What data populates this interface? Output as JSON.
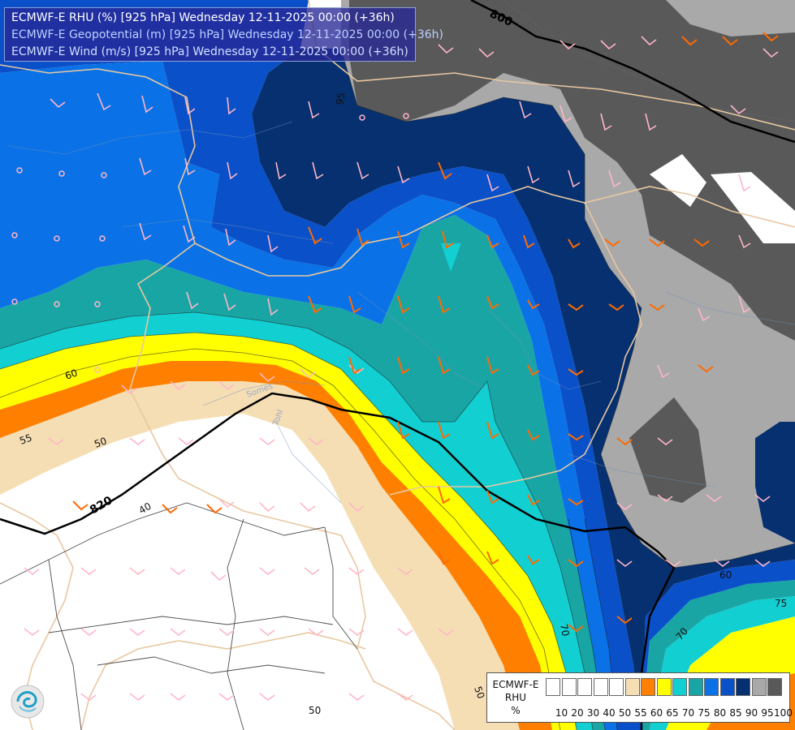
{
  "title": {
    "line1": "ECMWF-E RHU (%) [925 hPa] Wednesday 12-11-2025 00:00 (+36h)",
    "line2": "ECMWF-E Geopotential (m) [925 hPa] Wednesday 12-11-2025 00:00 (+36h)",
    "line3": "ECMWF-E Wind (m/s) [925 hPa] Wednesday 12-11-2025 00:00 (+36h)"
  },
  "geopotential_labels": [
    "800",
    "820"
  ],
  "rhu_contour_labels": [
    "95",
    "60",
    "55",
    "50",
    "40",
    "60",
    "75",
    "70",
    "70",
    "50",
    "50"
  ],
  "river_labels": [
    "Somes",
    "Tohl"
  ],
  "legend": {
    "name_line1": "ECMWF-E",
    "name_line2": "RHU",
    "unit": "%",
    "bins": [
      {
        "color": "#ffffff",
        "tick": "10"
      },
      {
        "color": "#ffffff",
        "tick": "20"
      },
      {
        "color": "#ffffff",
        "tick": "30"
      },
      {
        "color": "#ffffff",
        "tick": "40"
      },
      {
        "color": "#ffffff",
        "tick": "50"
      },
      {
        "color": "#f5deb3",
        "tick": "55"
      },
      {
        "color": "#ff7f00",
        "tick": "60"
      },
      {
        "color": "#ffff00",
        "tick": "65"
      },
      {
        "color": "#12cfd2",
        "tick": "70"
      },
      {
        "color": "#1aa5a5",
        "tick": "75"
      },
      {
        "color": "#0a72e6",
        "tick": "80"
      },
      {
        "color": "#0a50c8",
        "tick": "85"
      },
      {
        "color": "#063070",
        "tick": "90"
      },
      {
        "color": "#a9a9a9",
        "tick": "95"
      },
      {
        "color": "#595959",
        "tick": "100"
      }
    ]
  },
  "colors": {
    "rhu_100": "#595959",
    "rhu_95": "#a9a9a9",
    "rhu_90": "#063070",
    "rhu_85": "#0a50c8",
    "rhu_80": "#0a72e6",
    "rhu_75": "#1aa5a5",
    "rhu_70": "#12cfd2",
    "rhu_65": "#ffff00",
    "rhu_60": "#ff7f00",
    "rhu_55": "#f5deb3",
    "barb_strong": "#ff6a00",
    "barb_weak": "#ffb6c8",
    "border": "#e8c8a0"
  },
  "logo_icon": "ecmwf-logo-icon"
}
